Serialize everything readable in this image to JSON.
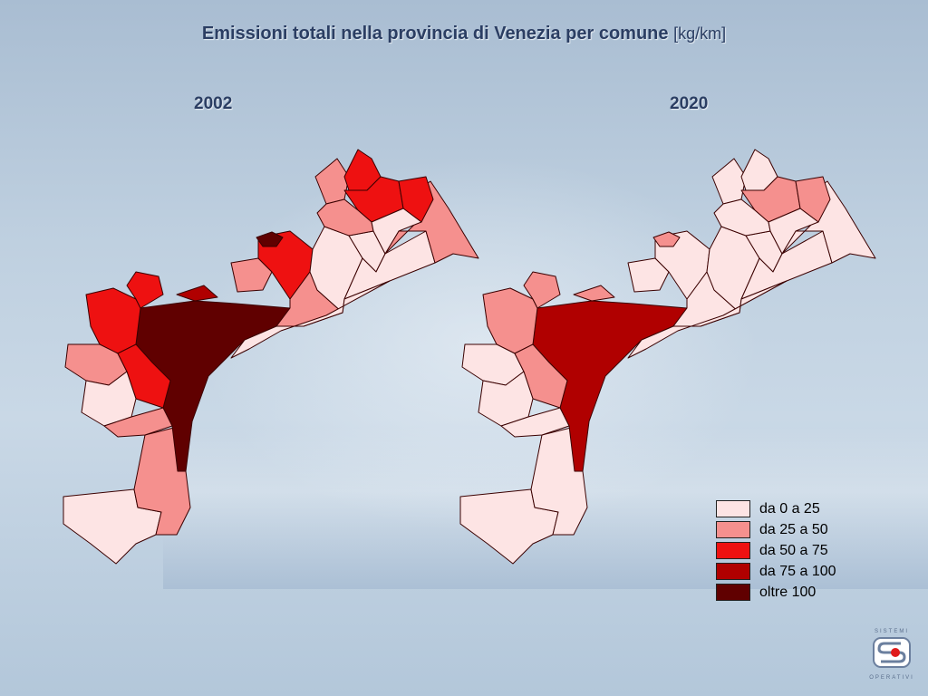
{
  "title": {
    "main": "Emissioni totali nella provincia di Venezia per comune",
    "unit": "[kg/km]"
  },
  "years": [
    "2002",
    "2020"
  ],
  "legend": [
    {
      "label": "da 0 a 25",
      "color": "#fde4e4"
    },
    {
      "label": "da 25 a 50",
      "color": "#f5908e"
    },
    {
      "label": "da 50 a 75",
      "color": "#ee1111"
    },
    {
      "label": "da 75 a 100",
      "color": "#b00000"
    },
    {
      "label": "oltre 100",
      "color": "#600000"
    }
  ],
  "logo": {
    "top": "SISTEMI",
    "bottom": "OPERATIVI"
  },
  "map_2002": {
    "classes_present": [
      "da 0 a 25",
      "da 25 a 50",
      "da 50 a 75",
      "oltre 100"
    ]
  },
  "map_2020": {
    "classes_present": [
      "da 0 a 25",
      "da 25 a 50",
      "da 75 a 100"
    ]
  }
}
